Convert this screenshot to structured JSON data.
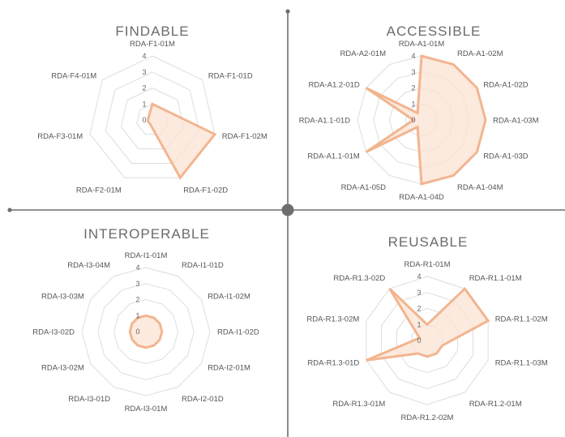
{
  "colors": {
    "fill": "#fbe3d3",
    "stroke": "#f2b58f",
    "grid": "#dddddd",
    "divider": "#6e6e6e",
    "text": "#555555"
  },
  "chart_data": [
    {
      "type": "radar",
      "title": "FINDABLE",
      "ticks": [
        "0",
        "1",
        "2",
        "3",
        "4"
      ],
      "rmax": 4,
      "labels": [
        "RDA-F1-01M",
        "RDA-F1-01D",
        "RDA-F1-02M",
        "RDA-F1-02D",
        "RDA-F2-01M",
        "RDA-F3-01M",
        "RDA-F4-01M"
      ],
      "values": [
        1,
        1,
        4,
        4,
        0.3,
        0.3,
        0.3
      ]
    },
    {
      "type": "radar",
      "title": "ACCESSIBLE",
      "ticks": [
        "0",
        "1",
        "2",
        "3",
        "4"
      ],
      "rmax": 4,
      "labels": [
        "RDA-A1-01M",
        "RDA-A1-02M",
        "RDA-A1-02D",
        "RDA-A1-03M",
        "RDA-A1-03D",
        "RDA-A1-04M",
        "RDA-A1-04D",
        "RDA-A1-05D",
        "RDA-A1.1-01M",
        "RDA-A1.1-01D",
        "RDA-A1.2-01D",
        "RDA-A2-01M"
      ],
      "values": [
        4,
        4,
        4,
        4,
        4,
        4,
        4,
        0.5,
        4,
        0.5,
        4,
        0.5
      ]
    },
    {
      "type": "radar",
      "title": "INTEROPERABLE",
      "ticks": [
        "0",
        "1",
        "2",
        "3",
        "4"
      ],
      "rmax": 4,
      "labels": [
        "RDA-I1-01M",
        "RDA-I1-01D",
        "RDA-I1-02M",
        "RDA-I1-02D",
        "RDA-I2-01M",
        "RDA-I2-01D",
        "RDA-I3-01M",
        "RDA-I3-01D",
        "RDA-I3-02M",
        "RDA-I3-02D",
        "RDA-I3-03M",
        "RDA-I3-04M"
      ],
      "values": [
        1,
        1,
        1,
        1,
        1,
        1,
        1,
        1,
        1,
        1,
        1,
        1
      ]
    },
    {
      "type": "radar",
      "title": "REUSABLE",
      "ticks": [
        "0",
        "1",
        "2",
        "3",
        "4"
      ],
      "rmax": 4,
      "labels": [
        "RDA-R1-01M",
        "RDA-R1.1-01M",
        "RDA-R1.1-02M",
        "RDA-R1.1-03M",
        "RDA-R1.2-01M",
        "RDA-R1.2-02M",
        "RDA-R1.3-01M",
        "RDA-R1.3-01D",
        "RDA-R1.3-02M",
        "RDA-R1.3-02D"
      ],
      "values": [
        1,
        4,
        4,
        1,
        1,
        1,
        1,
        4,
        0.5,
        4
      ]
    }
  ]
}
